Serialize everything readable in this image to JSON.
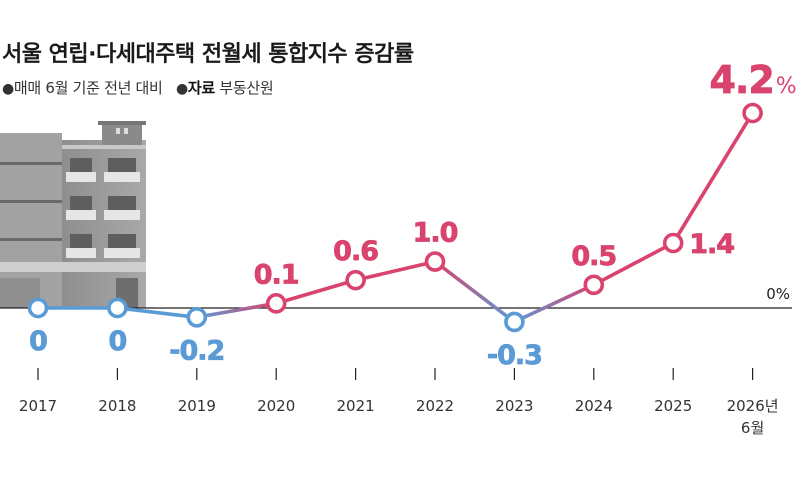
{
  "header": {
    "title": "서울 연립·다세대주택 전월세 통합지수 증감률",
    "basis": "매매 6월 기준 전년 대비",
    "source_label": "자료",
    "source_name": "부동산원"
  },
  "colors": {
    "positive": "#d9436e",
    "negative": "#5b9bd5",
    "axis": "#222222",
    "building": "#9b9b9b"
  },
  "chart_data": {
    "type": "line",
    "title": "서울 연립·다세대주택 전월세 통합지수 증감률",
    "categories": [
      "2017",
      "2018",
      "2019",
      "2020",
      "2021",
      "2022",
      "2023",
      "2024",
      "2025",
      "2026년 6월"
    ],
    "series": [
      {
        "values": [
          0,
          0,
          -0.2,
          0.1,
          0.6,
          1.0,
          -0.3,
          0.5,
          1.4,
          4.2
        ],
        "labels": [
          "0",
          "0",
          "-0.2",
          "0.1",
          "0.6",
          "1.0",
          "-0.3",
          "0.5",
          "1.4",
          "4.2"
        ]
      }
    ],
    "zero_line_label": "0%",
    "last_label_suffix": "%",
    "ylim": [
      -0.3,
      4.2
    ],
    "grid": false,
    "legend": "none"
  }
}
